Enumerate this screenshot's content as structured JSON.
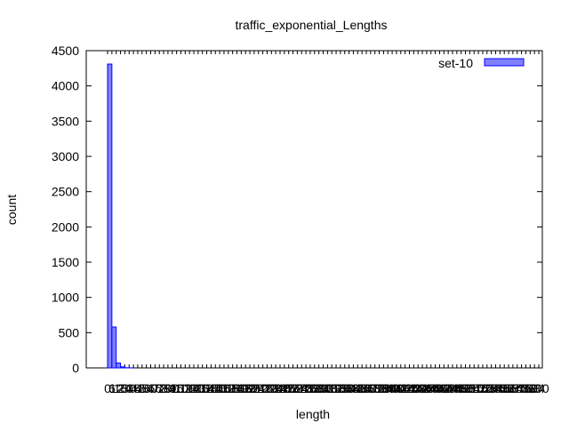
{
  "chart_data": {
    "type": "bar",
    "title": "traffic_exponential_Lengths",
    "xlabel": "length",
    "ylabel": "count",
    "ylim": [
      0,
      4500
    ],
    "y_ticks": [
      0,
      500,
      1000,
      1500,
      2000,
      2500,
      3000,
      3500,
      4000,
      4500
    ],
    "x_tick_labels": [
      "0",
      "6",
      "12",
      "18",
      "24",
      "30",
      "36",
      "42",
      "48",
      "54",
      "60",
      "66",
      "72",
      "78",
      "84",
      "90",
      "96",
      "102",
      "108",
      "114",
      "120",
      "126",
      "132",
      "138",
      "144",
      "150",
      "156",
      "162",
      "168",
      "174",
      "180",
      "186",
      "192",
      "198",
      "204",
      "210",
      "216",
      "222",
      "228",
      "234",
      "240",
      "246",
      "252",
      "258",
      "264",
      "270",
      "276",
      "282",
      "288",
      "294",
      "300",
      "306",
      "312",
      "318",
      "324",
      "330",
      "336",
      "342",
      "348",
      "354",
      "360",
      "366",
      "372",
      "378",
      "384",
      "390",
      "396",
      "402",
      "408",
      "414",
      "420",
      "426",
      "432",
      "438",
      "444",
      "450",
      "456",
      "462",
      "468",
      "474",
      "480",
      "486",
      "492",
      "498",
      "504",
      "510",
      "516",
      "522",
      "528",
      "534",
      "540",
      "546",
      "552",
      "558",
      "564",
      "570",
      "576",
      "582",
      "588",
      "594",
      "600"
    ],
    "categories": [
      "0",
      "6",
      "12",
      "18",
      "24",
      "30",
      "36",
      "42",
      "48",
      "54",
      "60",
      "66",
      "72",
      "78",
      "84",
      "90",
      "96",
      "102",
      "108",
      "114",
      "120",
      "126",
      "132",
      "138",
      "144",
      "150",
      "156",
      "162",
      "168",
      "174",
      "180",
      "186",
      "192",
      "198",
      "204",
      "210",
      "216",
      "222",
      "228",
      "234",
      "240",
      "246",
      "252",
      "258",
      "264",
      "270",
      "276",
      "282",
      "288",
      "294",
      "300",
      "306",
      "312",
      "318",
      "324",
      "330",
      "336",
      "342",
      "348",
      "354",
      "360",
      "366",
      "372",
      "378",
      "384",
      "390",
      "396",
      "402",
      "408",
      "414",
      "420",
      "426",
      "432",
      "438",
      "444",
      "450",
      "456",
      "462",
      "468",
      "474",
      "480",
      "486",
      "492",
      "498",
      "504",
      "510",
      "516",
      "522",
      "528",
      "534",
      "540",
      "546",
      "552",
      "558",
      "564",
      "570",
      "576",
      "582",
      "588",
      "594"
    ],
    "series": [
      {
        "name": "set-10",
        "color": "#8080ff",
        "values": [
          4310,
          580,
          70,
          15,
          3,
          1,
          0,
          0,
          0,
          0,
          0,
          0,
          0,
          0,
          0,
          0,
          0,
          0,
          0,
          0,
          0,
          0,
          0,
          0,
          0,
          0,
          0,
          0,
          0,
          0,
          0,
          0,
          0,
          0,
          0,
          0,
          0,
          0,
          0,
          0,
          0,
          0,
          0,
          0,
          0,
          0,
          0,
          0,
          0,
          0,
          0,
          0,
          0,
          0,
          0,
          0,
          0,
          0,
          0,
          0,
          0,
          0,
          0,
          0,
          0,
          0,
          0,
          0,
          0,
          0,
          0,
          0,
          0,
          0,
          0,
          0,
          0,
          0,
          0,
          0,
          0,
          0,
          0,
          0,
          0,
          0,
          0,
          0,
          0,
          0,
          0,
          0,
          0,
          0,
          0,
          0,
          0,
          0,
          0,
          0
        ]
      }
    ],
    "legend_position": "top-right",
    "grid": false
  }
}
